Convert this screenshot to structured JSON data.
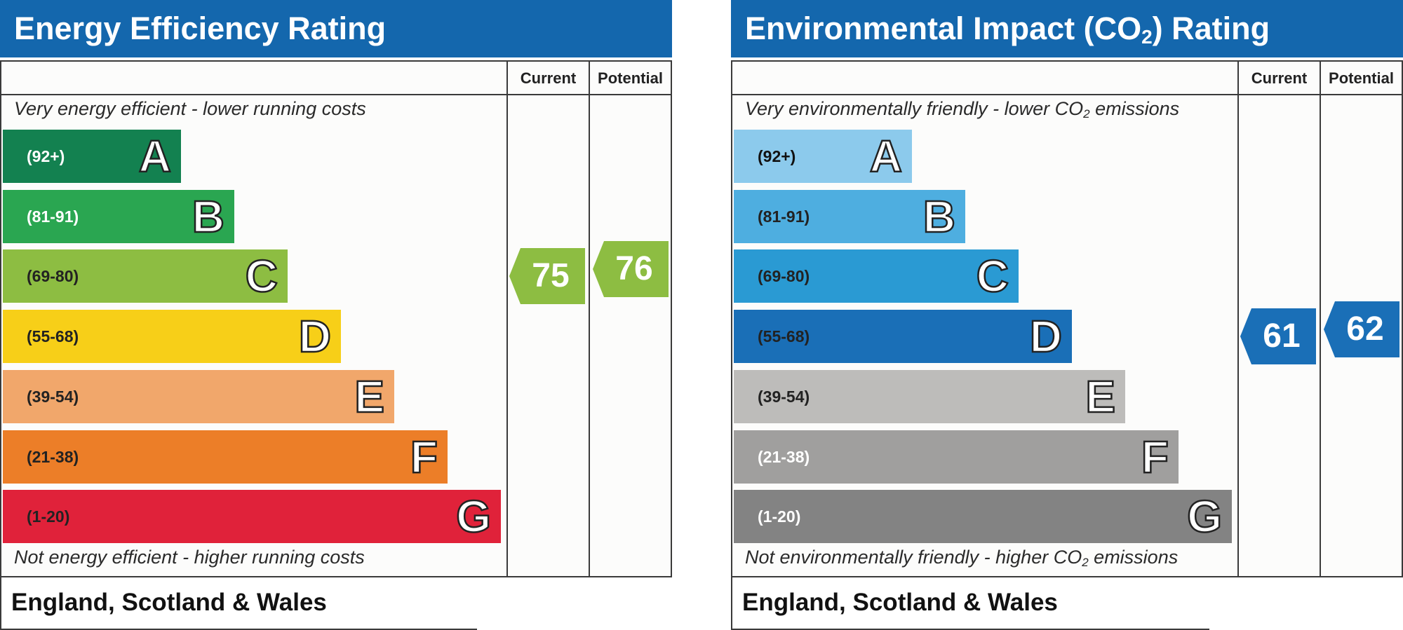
{
  "chart_data": [
    {
      "type": "bar",
      "title": "Energy Efficiency Rating",
      "column_headers": [
        "Current",
        "Potential"
      ],
      "top_note": "Very energy efficient - lower running costs",
      "bottom_note": "Not energy efficient - higher running costs",
      "footer": "England, Scotland & Wales",
      "bands": [
        {
          "letter": "A",
          "range": "(92+)",
          "color": "#138150"
        },
        {
          "letter": "B",
          "range": "(81-91)",
          "color": "#2aa651"
        },
        {
          "letter": "C",
          "range": "(69-80)",
          "color": "#8dbd42"
        },
        {
          "letter": "D",
          "range": "(55-68)",
          "color": "#f7cf18"
        },
        {
          "letter": "E",
          "range": "(39-54)",
          "color": "#f1a76b"
        },
        {
          "letter": "F",
          "range": "(21-38)",
          "color": "#ec7e28"
        },
        {
          "letter": "G",
          "range": "(1-20)",
          "color": "#e0223a"
        }
      ],
      "range_text_colors": [
        "#ffffff",
        "#ffffff",
        "#222222",
        "#222222",
        "#222222",
        "#222222",
        "#222222"
      ],
      "current": {
        "value": 75,
        "band": "C",
        "color": "#8dbd42"
      },
      "potential": {
        "value": 76,
        "band": "C",
        "color": "#8dbd42"
      }
    },
    {
      "type": "bar",
      "title_main": "Environmental Impact (CO",
      "title_sub": "2",
      "title_end": ") Rating",
      "column_headers": [
        "Current",
        "Potential"
      ],
      "top_note_main": "Very environmentally friendly - lower CO",
      "top_note_sub": "2",
      "top_note_end": " emissions",
      "bottom_note_main": "Not environmentally friendly - higher CO",
      "bottom_note_sub": "2",
      "bottom_note_end": " emissions",
      "footer": "England, Scotland & Wales",
      "bands": [
        {
          "letter": "A",
          "range": "(92+)",
          "color": "#8ccaec"
        },
        {
          "letter": "B",
          "range": "(81-91)",
          "color": "#4eaee0"
        },
        {
          "letter": "C",
          "range": "(69-80)",
          "color": "#2a9ad3"
        },
        {
          "letter": "D",
          "range": "(55-68)",
          "color": "#1a6fb7"
        },
        {
          "letter": "E",
          "range": "(39-54)",
          "color": "#bdbcba"
        },
        {
          "letter": "F",
          "range": "(21-38)",
          "color": "#a09f9e"
        },
        {
          "letter": "G",
          "range": "(1-20)",
          "color": "#838383"
        }
      ],
      "range_text_colors": [
        "#111111",
        "#222222",
        "#222222",
        "#222222",
        "#222222",
        "#ffffff",
        "#ffffff"
      ],
      "current": {
        "value": 61,
        "band": "D",
        "color": "#1a6fb7"
      },
      "potential": {
        "value": 62,
        "band": "D",
        "color": "#1a6fb7"
      }
    }
  ]
}
